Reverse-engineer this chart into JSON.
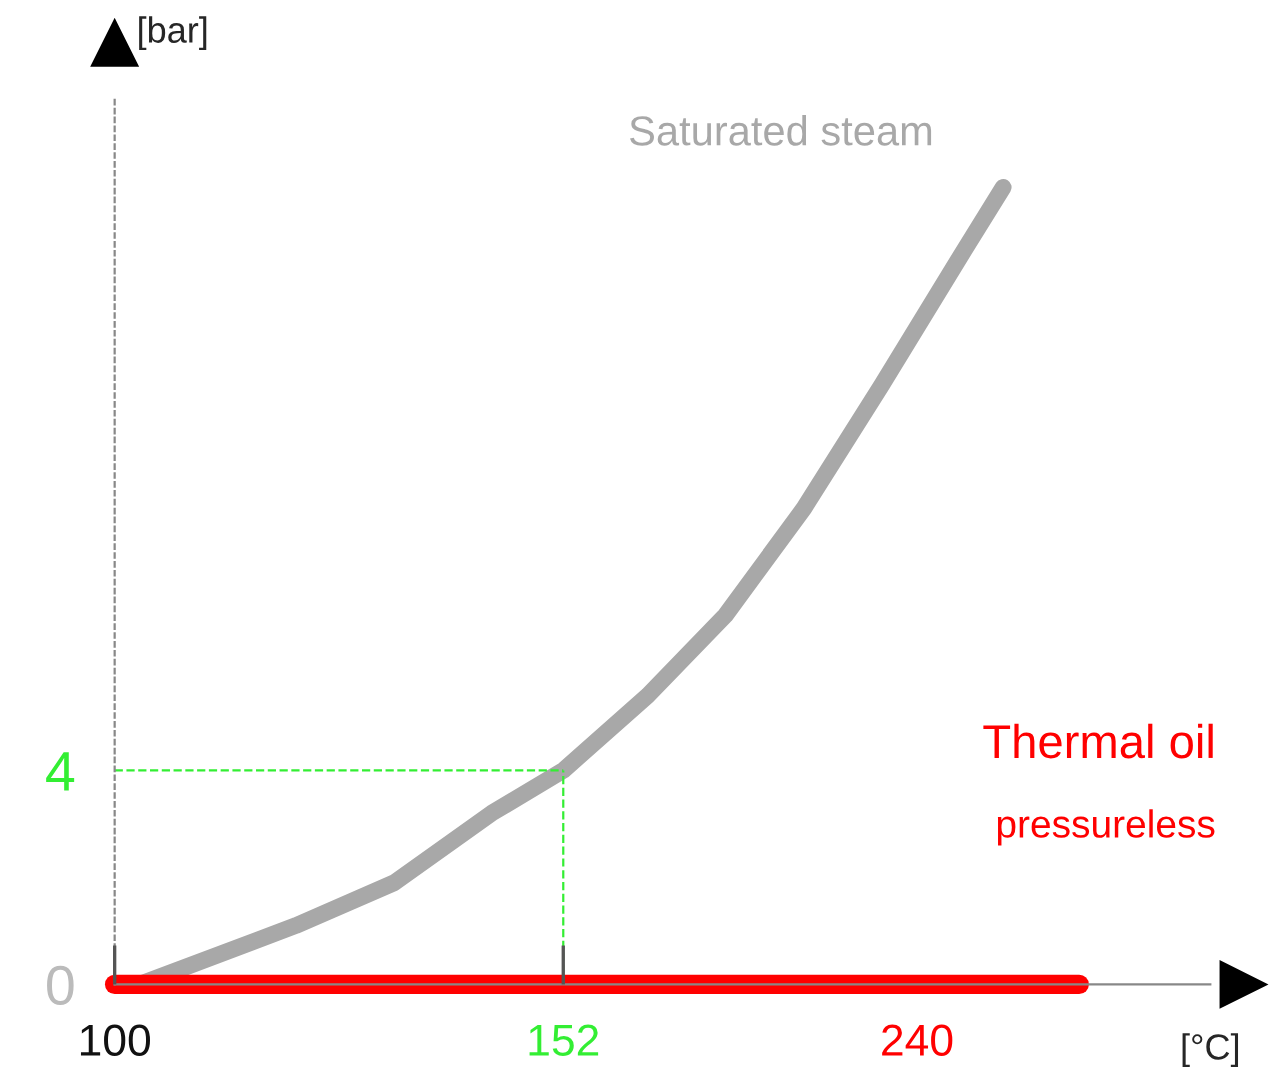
{
  "chart_data": {
    "type": "line",
    "xlabel": "[°C]",
    "ylabel": "[bar]",
    "xlim": [
      100,
      227
    ],
    "ylim": [
      0,
      16.6
    ],
    "xticks": [
      100,
      152
    ],
    "yticks": [
      0,
      4
    ],
    "series": [
      {
        "name": "Saturated steam",
        "color": "#a8a8a8",
        "x": [
          102.9,
          121,
          132.4,
          143.7,
          152,
          161.8,
          170.8,
          179.9,
          188.9,
          198,
          203
        ],
        "values": [
          0,
          1.1,
          1.9,
          3.2,
          4,
          5.4,
          6.9,
          8.9,
          11.2,
          13.6,
          14.9
        ]
      },
      {
        "name": "Thermal oil",
        "color": "#ff0000",
        "x": [
          100,
          211.8
        ],
        "values": [
          0,
          0
        ]
      }
    ],
    "ref_lines": [
      {
        "axis": "y",
        "value": 4,
        "color": "#33ee33",
        "line_style": "dashed"
      },
      {
        "axis": "x",
        "value": 152,
        "color": "#33ee33",
        "line_style": "dashed"
      }
    ],
    "annotations": [
      "pressureless",
      {
        "text": "240",
        "x": 193,
        "y": 0
      }
    ],
    "grid": false
  }
}
